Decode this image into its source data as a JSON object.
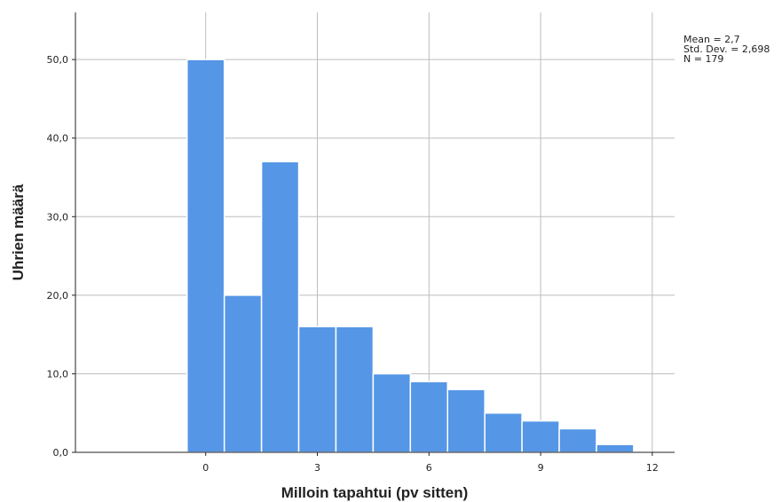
{
  "chart_data": {
    "type": "bar",
    "subtype": "histogram",
    "xlabel": "Milloin tapahtui (pv sitten)",
    "ylabel": "Uhrien määrä",
    "bins": [
      {
        "center": 0,
        "value": 50
      },
      {
        "center": 1,
        "value": 20
      },
      {
        "center": 2,
        "value": 37
      },
      {
        "center": 3,
        "value": 16
      },
      {
        "center": 4,
        "value": 16
      },
      {
        "center": 5,
        "value": 10
      },
      {
        "center": 6,
        "value": 9
      },
      {
        "center": 7,
        "value": 8
      },
      {
        "center": 8,
        "value": 5
      },
      {
        "center": 9,
        "value": 4
      },
      {
        "center": 10,
        "value": 3
      },
      {
        "center": 11,
        "value": 1
      }
    ],
    "bin_width": 1,
    "xlim": [
      -3.5,
      12.6
    ],
    "ylim": [
      0,
      56
    ],
    "x_ticks": [
      0,
      3,
      6,
      9,
      12
    ],
    "x_tick_labels": [
      "0",
      "3",
      "6",
      "9",
      "12"
    ],
    "y_ticks": [
      0,
      10,
      20,
      30,
      40,
      50
    ],
    "y_tick_labels": [
      "0,0",
      "10,0",
      "20,0",
      "30,0",
      "40,0",
      "50,0"
    ],
    "grid": true,
    "bar_color": "#5596e6",
    "stats": [
      "Mean = 2,7",
      "Std. Dev. = 2,698",
      "N = 179"
    ],
    "stats_placement": "top-right"
  }
}
